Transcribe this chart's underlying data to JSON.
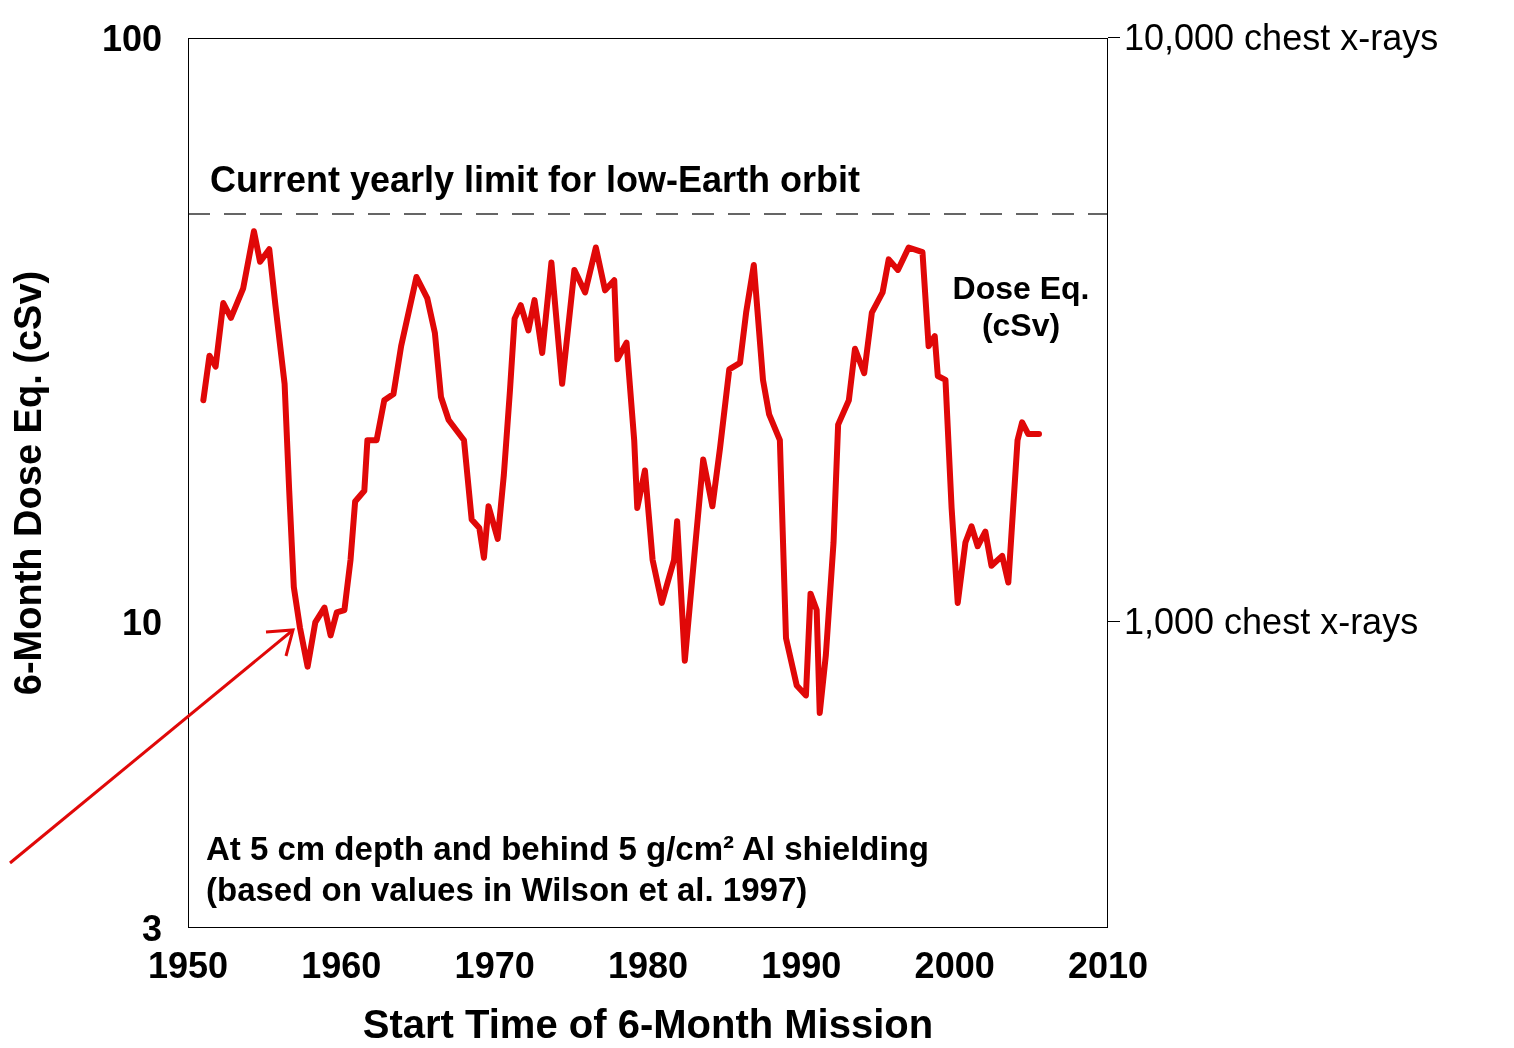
{
  "chart_data": {
    "type": "line",
    "xlabel": "Start Time of 6-Month Mission",
    "ylabel": "6-Month Dose Eq. (cSv)",
    "x": [
      1951.0,
      1951.4,
      1951.8,
      1952.3,
      1952.8,
      1953.6,
      1954.3,
      1954.7,
      1955.3,
      1955.7,
      1956.3,
      1956.6,
      1956.9,
      1957.3,
      1957.8,
      1958.3,
      1958.9,
      1959.3,
      1959.7,
      1960.2,
      1960.6,
      1960.9,
      1961.5,
      1961.7,
      1962.3,
      1962.8,
      1963.4,
      1963.9,
      1964.9,
      1965.6,
      1966.1,
      1966.5,
      1967.0,
      1968.0,
      1968.5,
      1969.0,
      1969.3,
      1969.6,
      1970.2,
      1970.6,
      1971.0,
      1971.3,
      1971.7,
      1972.2,
      1972.6,
      1973.1,
      1973.7,
      1974.4,
      1975.2,
      1975.9,
      1976.6,
      1977.2,
      1977.8,
      1978.0,
      1978.6,
      1979.1,
      1979.3,
      1979.8,
      1980.3,
      1980.9,
      1981.7,
      1981.9,
      1982.4,
      1983.1,
      1983.6,
      1984.2,
      1984.7,
      1985.3,
      1986.0,
      1986.4,
      1986.9,
      1987.5,
      1987.9,
      1988.6,
      1989.0,
      1989.7,
      1990.3,
      1990.6,
      1991.0,
      1991.2,
      1991.6,
      1992.1,
      1992.4,
      1993.1,
      1993.5,
      1994.1,
      1994.6,
      1995.3,
      1995.7,
      1996.3,
      1997.0,
      1997.9,
      1998.3,
      1998.7,
      1998.9,
      1999.4,
      1999.8,
      2000.2,
      2000.7,
      2001.1,
      2001.5,
      2002.0,
      2002.4,
      2003.1,
      2003.5,
      2004.1,
      2004.4,
      2004.8,
      2005.5
    ],
    "series": [
      {
        "name": "Dose Eq. (cSv)",
        "color": "#e00808",
        "values": [
          24.0,
          28.6,
          27.4,
          35.2,
          33.2,
          37.3,
          46.7,
          41.4,
          43.5,
          34.9,
          25.6,
          16.8,
          11.5,
          9.8,
          8.4,
          10.0,
          10.6,
          9.5,
          10.4,
          10.5,
          12.8,
          16.1,
          16.8,
          20.5,
          20.5,
          24.0,
          24.6,
          29.7,
          39.0,
          35.9,
          31.3,
          24.3,
          22.2,
          20.5,
          15.0,
          14.5,
          12.9,
          15.8,
          13.9,
          17.9,
          25.0,
          33.1,
          34.9,
          31.6,
          35.6,
          28.9,
          41.3,
          25.6,
          40.1,
          36.7,
          43.8,
          37.0,
          38.5,
          28.2,
          30.1,
          20.5,
          15.7,
          18.2,
          12.8,
          10.8,
          12.8,
          14.9,
          8.6,
          13.7,
          19.0,
          15.8,
          19.9,
          27.1,
          27.8,
          33.9,
          40.9,
          26.0,
          22.7,
          20.5,
          9.4,
          7.8,
          7.5,
          11.2,
          10.5,
          7.0,
          8.8,
          13.7,
          21.8,
          24.0,
          29.4,
          26.7,
          33.9,
          36.7,
          41.8,
          40.1,
          43.8,
          43.0,
          29.7,
          30.9,
          26.4,
          26.0,
          15.7,
          10.8,
          13.7,
          14.6,
          13.5,
          14.3,
          12.5,
          13.0,
          11.7,
          20.5,
          22.0,
          21.0,
          21.0
        ]
      }
    ],
    "xlim": [
      1950,
      2010
    ],
    "xticks": [
      1950,
      1960,
      1970,
      1980,
      1990,
      2000,
      2010
    ],
    "ylim": [
      3,
      100
    ],
    "yticks": [
      3,
      10,
      100
    ],
    "log": true,
    "ref_lines": [
      {
        "axis": "y",
        "value": 50,
        "label": "Current yearly limit for low-Earth orbit",
        "line_style": "dashed",
        "color": "#333333"
      }
    ],
    "annotations": [
      "At 5 cm depth and behind 5 g/cm² Al shielding",
      "(based on values in Wilson et al. 1997)",
      "10,000 chest x-rays",
      "1,000 chest x-rays"
    ],
    "grid": false,
    "marker": "none",
    "line_style": "solid"
  }
}
